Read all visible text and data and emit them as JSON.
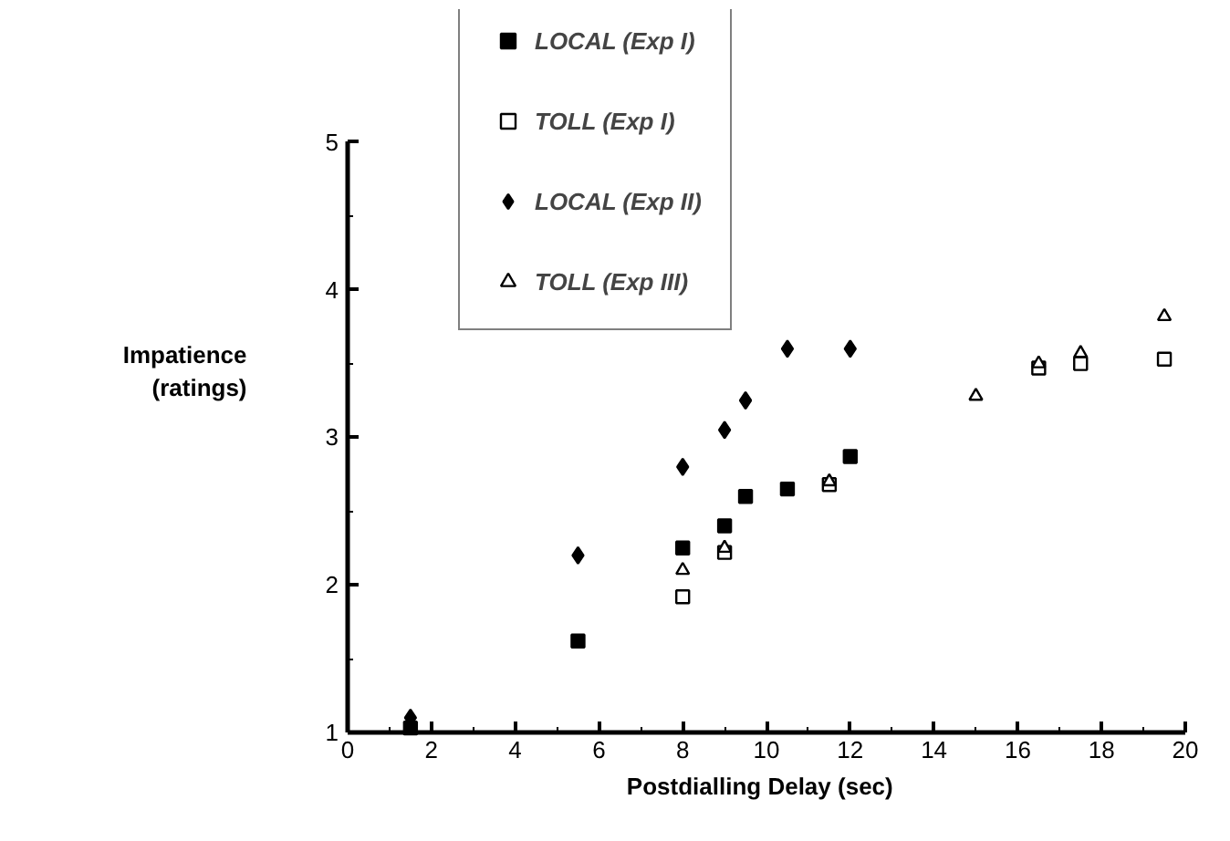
{
  "chart_data": {
    "type": "scatter",
    "xlabel": "Postdialling  Delay  (sec)",
    "ylabel": "Impatience\n(ratings)",
    "xlim": [
      0,
      20
    ],
    "ylim": [
      1,
      5
    ],
    "xticks": [
      0,
      {
        "value": 1,
        "label": null
      },
      2,
      {
        "value": 3,
        "label": null
      },
      4,
      {
        "value": 5,
        "label": null
      },
      6,
      {
        "value": 7,
        "label": null
      },
      8,
      {
        "value": 9,
        "label": null
      },
      10,
      {
        "value": 11,
        "label": null
      },
      12,
      {
        "value": 13,
        "label": null
      },
      14,
      {
        "value": 15,
        "label": null
      },
      16,
      {
        "value": 17,
        "label": null
      },
      18,
      {
        "value": 19,
        "label": null
      },
      20
    ],
    "yticks": [
      1,
      {
        "value": 1.5,
        "label": null
      },
      2,
      {
        "value": 2.5,
        "label": null
      },
      3,
      {
        "value": 3.5,
        "label": null
      },
      4,
      {
        "value": 4.5,
        "label": null
      },
      5
    ],
    "grid": false,
    "legend": "top",
    "series": [
      {
        "name": "LOCAL (Exp I)",
        "color": "#000000",
        "marker": "square",
        "x": [
          1.5,
          5.5,
          8,
          9,
          9.5,
          10.5,
          12
        ],
        "values": [
          1.03,
          1.62,
          2.25,
          2.4,
          2.6,
          2.65,
          2.87
        ]
      },
      {
        "name": "TOLL (Exp I)",
        "color": "#ffffff",
        "marker": "square",
        "x": [
          8,
          9,
          11.5,
          16.5,
          17.5,
          19.5
        ],
        "values": [
          1.92,
          2.22,
          2.68,
          3.47,
          3.5,
          3.53
        ]
      },
      {
        "name": "LOCAL (Exp II)",
        "color": "#000000",
        "marker": "diamond",
        "x": [
          1.5,
          5.5,
          8,
          9,
          9.5,
          10.5,
          12
        ],
        "values": [
          1.1,
          2.2,
          2.8,
          3.05,
          3.25,
          3.6,
          3.6
        ]
      },
      {
        "name": "TOLL (Exp III)",
        "color": "#ffffff",
        "marker": "triangle",
        "x": [
          8,
          9,
          11.5,
          15,
          16.5,
          17.5,
          19.5
        ],
        "values": [
          2.1,
          2.25,
          2.7,
          3.28,
          3.5,
          3.57,
          3.82
        ]
      }
    ]
  }
}
